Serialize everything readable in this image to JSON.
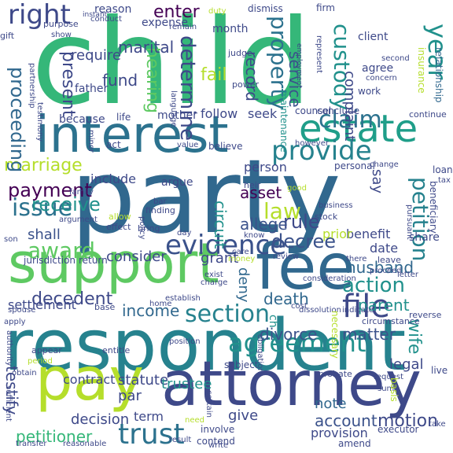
{
  "words": [
    {
      "text": "child",
      "color": "#35b779"
    },
    {
      "text": "party",
      "color": "#31688e"
    },
    {
      "text": "respondent",
      "color": "#26828e"
    },
    {
      "text": "attorney",
      "color": "#3e4989"
    },
    {
      "text": "interest",
      "color": "#2c728e"
    },
    {
      "text": "support",
      "color": "#5ec962"
    },
    {
      "text": "fee",
      "color": "#31688e"
    },
    {
      "text": "estate",
      "color": "#1f9e89"
    },
    {
      "text": "pay",
      "color": "#b5de2b"
    },
    {
      "text": "evidence",
      "color": "#3b528b"
    },
    {
      "text": "trust",
      "color": "#2c728e"
    },
    {
      "text": "agreement",
      "color": "#21918c"
    },
    {
      "text": "section",
      "color": "#26828e"
    },
    {
      "text": "file",
      "color": "#3e4989"
    },
    {
      "text": "award",
      "color": "#5ec962"
    },
    {
      "text": "issue",
      "color": "#2c728e"
    },
    {
      "text": "law",
      "color": "#b5de2b"
    },
    {
      "text": "provide",
      "color": "#26828e"
    },
    {
      "text": "claim",
      "color": "#2c728e"
    },
    {
      "text": "right",
      "color": "#3e4989"
    },
    {
      "text": "marriage",
      "color": "#b5de2b"
    },
    {
      "text": "payment",
      "color": "#440154"
    },
    {
      "text": "receive",
      "color": "#21918c"
    },
    {
      "text": "decree",
      "color": "#3b528b"
    },
    {
      "text": "action",
      "color": "#21918c"
    },
    {
      "text": "petition",
      "color": "#26828e"
    },
    {
      "text": "property",
      "color": "#2c728e"
    },
    {
      "text": "custody",
      "color": "#21918c"
    },
    {
      "text": "year",
      "color": "#21918c"
    },
    {
      "text": "determine",
      "color": "#3e4989"
    },
    {
      "text": "hearing",
      "color": "#5ec962"
    },
    {
      "text": "present",
      "color": "#3e4989"
    },
    {
      "text": "proceeding",
      "color": "#31688e"
    },
    {
      "text": "enter",
      "color": "#440154"
    },
    {
      "text": "marital",
      "color": "#3e4989"
    },
    {
      "text": "fund",
      "color": "#3e4989"
    },
    {
      "text": "require",
      "color": "#3e4989"
    },
    {
      "text": "record",
      "color": "#3e4989"
    },
    {
      "text": "service",
      "color": "#3b528b"
    },
    {
      "text": "rule",
      "color": "#3e4989"
    },
    {
      "text": "allege",
      "color": "#3b528b"
    },
    {
      "text": "asset",
      "color": "#440154"
    },
    {
      "text": "circuit",
      "color": "#21918c"
    },
    {
      "text": "decedent",
      "color": "#3e4989"
    },
    {
      "text": "income",
      "color": "#31688e"
    },
    {
      "text": "death",
      "color": "#31688e"
    },
    {
      "text": "parent",
      "color": "#21918c"
    },
    {
      "text": "husband",
      "color": "#31688e"
    },
    {
      "text": "shall",
      "color": "#3b528b"
    },
    {
      "text": "consider",
      "color": "#3e4989"
    },
    {
      "text": "settlement",
      "color": "#3e4989"
    },
    {
      "text": "divorce",
      "color": "#3b528b"
    },
    {
      "text": "matter",
      "color": "#3b528b"
    },
    {
      "text": "wife",
      "color": "#21918c"
    },
    {
      "text": "petitioner",
      "color": "#35b779"
    },
    {
      "text": "motion",
      "color": "#3e4989"
    },
    {
      "text": "account",
      "color": "#3b528b"
    },
    {
      "text": "note",
      "color": "#31688e"
    },
    {
      "text": "testify",
      "color": "#3e4989"
    },
    {
      "text": "decision",
      "color": "#3e4989"
    },
    {
      "text": "contract",
      "color": "#3e4989"
    },
    {
      "text": "statute",
      "color": "#3e4989"
    },
    {
      "text": "trustee",
      "color": "#21918c"
    },
    {
      "text": "legal",
      "color": "#3e4989"
    },
    {
      "text": "provision",
      "color": "#3e4989"
    },
    {
      "text": "give",
      "color": "#3e4989"
    },
    {
      "text": "par",
      "color": "#3e4989"
    },
    {
      "text": "term",
      "color": "#3e4989"
    },
    {
      "text": "deny",
      "color": "#31688e"
    },
    {
      "text": "ch",
      "color": "#21918c"
    },
    {
      "text": "complaint",
      "color": "#3e4989"
    },
    {
      "text": "grant",
      "color": "#3e4989"
    },
    {
      "text": "benefit",
      "color": "#3e4989"
    },
    {
      "text": "prior",
      "color": "#b5de2b"
    },
    {
      "text": "date",
      "color": "#3e4989"
    },
    {
      "text": "say",
      "color": "#3e4989"
    },
    {
      "text": "share",
      "color": "#3e4989"
    },
    {
      "text": "include",
      "color": "#3e4989"
    },
    {
      "text": "argue",
      "color": "#3e4989"
    },
    {
      "text": "person",
      "color": "#3e4989"
    },
    {
      "text": "follow",
      "color": "#3e4989"
    },
    {
      "text": "seek",
      "color": "#3e4989"
    },
    {
      "text": "mother",
      "color": "#3e4989"
    },
    {
      "text": "father",
      "color": "#3e4989"
    },
    {
      "text": "because",
      "color": "#3e4989"
    },
    {
      "text": "fail",
      "color": "#b5de2b"
    },
    {
      "text": "month",
      "color": "#3e4989"
    },
    {
      "text": "client",
      "color": "#3e4989"
    },
    {
      "text": "agree",
      "color": "#3e4989"
    },
    {
      "text": "work",
      "color": "#3e4989"
    },
    {
      "text": "expense",
      "color": "#3e4989"
    },
    {
      "text": "reason",
      "color": "#3e4989"
    },
    {
      "text": "conduct",
      "color": "#3e4989"
    },
    {
      "text": "purpose",
      "color": "#3e4989"
    },
    {
      "text": "gift",
      "color": "#3e4989"
    },
    {
      "text": "show",
      "color": "#3e4989"
    },
    {
      "text": "instant",
      "color": "#3e4989"
    },
    {
      "text": "duty",
      "color": "#b5de2b"
    },
    {
      "text": "dismiss",
      "color": "#3e4989"
    },
    {
      "text": "firm",
      "color": "#3e4989"
    },
    {
      "text": "judge",
      "color": "#3e4989"
    },
    {
      "text": "power",
      "color": "#3e4989"
    },
    {
      "text": "maintenance",
      "color": "#21918c"
    },
    {
      "text": "remain",
      "color": "#3e4989"
    },
    {
      "text": "second",
      "color": "#3e4989"
    },
    {
      "text": "concern",
      "color": "#3e4989"
    },
    {
      "text": "insurance",
      "color": "#b5de2b"
    },
    {
      "text": "relationship",
      "color": "#31688e"
    },
    {
      "text": "continue",
      "color": "#3e4989"
    },
    {
      "text": "loan",
      "color": "#3e4989"
    },
    {
      "text": "tax",
      "color": "#3e4989"
    },
    {
      "text": "counsel",
      "color": "#3e4989"
    },
    {
      "text": "conclude",
      "color": "#3e4989"
    },
    {
      "text": "life",
      "color": "#3e4989"
    },
    {
      "text": "language",
      "color": "#3e4989"
    },
    {
      "text": "testimony",
      "color": "#3e4989"
    },
    {
      "text": "partnership",
      "color": "#3e4989"
    },
    {
      "text": "act",
      "color": "#3e4989"
    },
    {
      "text": "minor",
      "color": "#3e4989"
    },
    {
      "text": "value",
      "color": "#3e4989"
    },
    {
      "text": "believe",
      "color": "#3e4989"
    },
    {
      "text": "however",
      "color": "#3e4989"
    },
    {
      "text": "heir",
      "color": "#3e4989"
    },
    {
      "text": "good",
      "color": "#b5de2b"
    },
    {
      "text": "personal",
      "color": "#3e4989"
    },
    {
      "text": "change",
      "color": "#3e4989"
    },
    {
      "text": "business",
      "color": "#3e4989"
    },
    {
      "text": "stock",
      "color": "#3e4989"
    },
    {
      "text": "beneficiary",
      "color": "#3e4989"
    },
    {
      "text": "pursuant",
      "color": "#3e4989"
    },
    {
      "text": "finding",
      "color": "#3e4989"
    },
    {
      "text": "policy",
      "color": "#3e4989"
    },
    {
      "text": "allow",
      "color": "#b5de2b"
    },
    {
      "text": "effect",
      "color": "#3e4989"
    },
    {
      "text": "family",
      "color": "#3e4989"
    },
    {
      "text": "argument",
      "color": "#3e4989"
    },
    {
      "text": "bring",
      "color": "#3e4989"
    },
    {
      "text": "day",
      "color": "#3e4989"
    },
    {
      "text": "know",
      "color": "#3e4989"
    },
    {
      "text": "care",
      "color": "#3e4989"
    },
    {
      "text": "review",
      "color": "#3e4989"
    },
    {
      "text": "there",
      "color": "#3e4989"
    },
    {
      "text": "leave",
      "color": "#3e4989"
    },
    {
      "text": "proceed",
      "color": "#3e4989"
    },
    {
      "text": "letter",
      "color": "#3e4989"
    },
    {
      "text": "jurisdiction",
      "color": "#3e4989"
    },
    {
      "text": "return",
      "color": "#3e4989"
    },
    {
      "text": "money",
      "color": "#b5de2b"
    },
    {
      "text": "exist",
      "color": "#3e4989"
    },
    {
      "text": "charge",
      "color": "#3e4989"
    },
    {
      "text": "establish",
      "color": "#3e4989"
    },
    {
      "text": "home",
      "color": "#3e4989"
    },
    {
      "text": "base",
      "color": "#3e4989"
    },
    {
      "text": "spouse",
      "color": "#3e4989"
    },
    {
      "text": "apply",
      "color": "#3e4989"
    },
    {
      "text": "dissolution",
      "color": "#3e4989"
    },
    {
      "text": "indicate",
      "color": "#3e4989"
    },
    {
      "text": "cost",
      "color": "#3e4989"
    },
    {
      "text": "necessary",
      "color": "#b5de2b"
    },
    {
      "text": "circumstance",
      "color": "#3e4989"
    },
    {
      "text": "reverse",
      "color": "#3e4989"
    },
    {
      "text": "live",
      "color": "#3e4989"
    },
    {
      "text": "authority",
      "color": "#3e4989"
    },
    {
      "text": "appear",
      "color": "#3e4989"
    },
    {
      "text": "entitle",
      "color": "#3e4989"
    },
    {
      "text": "position",
      "color": "#3e4989"
    },
    {
      "text": "subject",
      "color": "#3e4989"
    },
    {
      "text": "obligation",
      "color": "#3e4989"
    },
    {
      "text": "probate",
      "color": "#3e4989"
    },
    {
      "text": "request",
      "color": "#3e4989"
    },
    {
      "text": "sum",
      "color": "#3e4989"
    },
    {
      "text": "basis",
      "color": "#b5de2b"
    },
    {
      "text": "sufficient",
      "color": "#3e4989"
    },
    {
      "text": "certain",
      "color": "#3e4989"
    },
    {
      "text": "involve",
      "color": "#3e4989"
    },
    {
      "text": "need",
      "color": "#b5de2b"
    },
    {
      "text": "contend",
      "color": "#3e4989"
    },
    {
      "text": "result",
      "color": "#3e4989"
    },
    {
      "text": "write",
      "color": "#3e4989"
    },
    {
      "text": "executor",
      "color": "#3e4989"
    },
    {
      "text": "transfer",
      "color": "#3e4989"
    },
    {
      "text": "reasonable",
      "color": "#3e4989"
    },
    {
      "text": "amend",
      "color": "#3e4989"
    },
    {
      "text": "take",
      "color": "#3e4989"
    },
    {
      "text": "period",
      "color": "#b5de2b"
    },
    {
      "text": "employment",
      "color": "#3e4989"
    },
    {
      "text": "represent",
      "color": "#3e4989"
    },
    {
      "text": "bar",
      "color": "#3e4989"
    },
    {
      "text": "son",
      "color": "#3e4989"
    },
    {
      "text": "obtain",
      "color": "#3e4989"
    },
    {
      "text": "consideration",
      "color": "#3e4989"
    }
  ]
}
